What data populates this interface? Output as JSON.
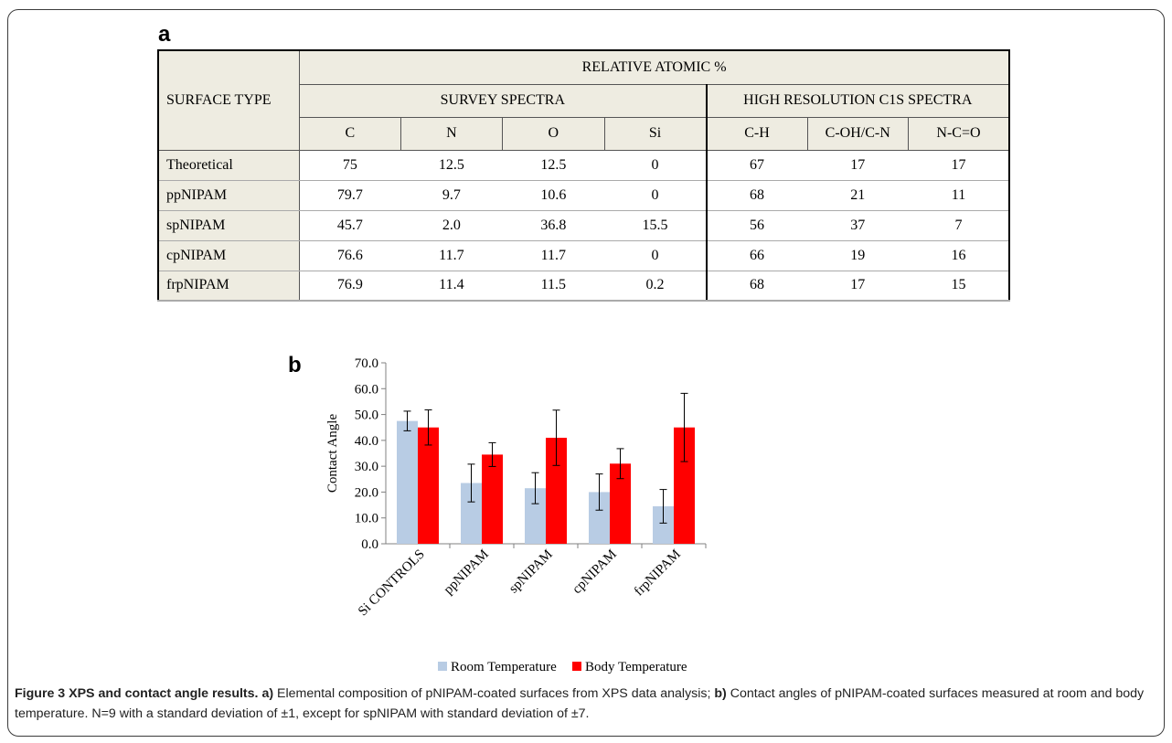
{
  "panel_a_letter": "a",
  "panel_b_letter": "b",
  "table": {
    "row_header": "SURFACE TYPE",
    "group_header": "RELATIVE ATOMIC %",
    "subgroups": [
      "SURVEY SPECTRA",
      "HIGH RESOLUTION C1S SPECTRA"
    ],
    "columns": [
      "C",
      "N",
      "O",
      "Si",
      "C-H",
      "C-OH/C-N",
      "N-C=O"
    ],
    "rows": [
      {
        "label": "Theoretical",
        "values": [
          "75",
          "12.5",
          "12.5",
          "0",
          "67",
          "17",
          "17"
        ]
      },
      {
        "label": "ppNIPAM",
        "values": [
          "79.7",
          "9.7",
          "10.6",
          "0",
          "68",
          "21",
          "11"
        ]
      },
      {
        "label": "spNIPAM",
        "values": [
          "45.7",
          "2.0",
          "36.8",
          "15.5",
          "56",
          "37",
          "7"
        ]
      },
      {
        "label": "cpNIPAM",
        "values": [
          "76.6",
          "11.7",
          "11.7",
          "0",
          "66",
          "19",
          "16"
        ]
      },
      {
        "label": "frpNIPAM",
        "values": [
          "76.9",
          "11.4",
          "11.5",
          "0.2",
          "68",
          "17",
          "15"
        ]
      }
    ]
  },
  "chart_data": {
    "type": "bar",
    "ylabel": "Contact Angle",
    "ylim": [
      0,
      70
    ],
    "yticks": [
      "0.0",
      "10.0",
      "20.0",
      "30.0",
      "40.0",
      "50.0",
      "60.0",
      "70.0"
    ],
    "categories": [
      "Si CONTROLS",
      "ppNIPAM",
      "spNIPAM",
      "cpNIPAM",
      "frpNIPAM"
    ],
    "series": [
      {
        "name": "Room Temperature",
        "color": "#b8cce4",
        "values": [
          47.5,
          23.5,
          21.5,
          20.0,
          14.5
        ],
        "err": [
          3.8,
          7.3,
          6.0,
          7.0,
          6.5
        ]
      },
      {
        "name": "Body Temperature",
        "color": "#ff0000",
        "values": [
          45.0,
          34.5,
          41.0,
          31.0,
          45.0
        ],
        "err": [
          6.8,
          4.6,
          10.7,
          5.8,
          13.2
        ]
      }
    ],
    "legend_position": "bottom"
  },
  "caption": {
    "figure_title": "Figure 3 XPS and contact angle results.",
    "part_a_label": "a)",
    "part_a_text": " Elemental composition of pNIPAM-coated surfaces from XPS data analysis; ",
    "part_b_label": "b)",
    "part_b_text": " Contact angles of pNIPAM-coated surfaces measured at room and body temperature. N=9 with a standard deviation of ±1, except for spNIPAM with standard deviation of ±7."
  }
}
